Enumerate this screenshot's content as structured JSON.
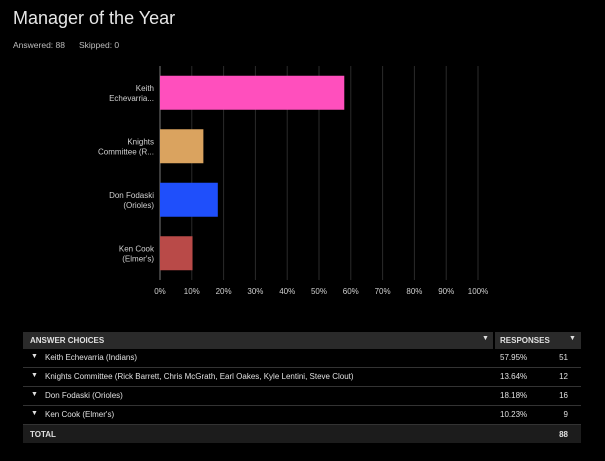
{
  "survey": {
    "title": "Manager of the Year",
    "answered_label": "Answered: 88",
    "skipped_label": "Skipped: 0"
  },
  "chart_data": {
    "type": "bar",
    "orientation": "horizontal",
    "categories": [
      [
        "Keith",
        "Echevarria..."
      ],
      [
        "Knights",
        "Committee (R..."
      ],
      [
        "Don Fodaski",
        "(Orioles)"
      ],
      [
        "Ken Cook",
        "(Elmer's)"
      ]
    ],
    "values": [
      57.95,
      13.64,
      18.18,
      10.23
    ],
    "colors": [
      "#ff4fbd",
      "#daa35f",
      "#1f4ffb",
      "#b94a48"
    ],
    "xlim": [
      0,
      100
    ],
    "ticks": [
      "0%",
      "10%",
      "20%",
      "30%",
      "40%",
      "50%",
      "60%",
      "70%",
      "80%",
      "90%",
      "100%"
    ],
    "grid": true
  },
  "table": {
    "header_choice": "ANSWER CHOICES",
    "header_responses": "RESPONSES",
    "rows": [
      {
        "choice": "Keith Echevarria (Indians)",
        "percent": "57.95%",
        "count": "51"
      },
      {
        "choice": "Knights Committee (Rick Barrett, Chris McGrath, Earl Oakes, Kyle Lentini, Steve Clout)",
        "percent": "13.64%",
        "count": "12"
      },
      {
        "choice": "Don Fodaski (Orioles)",
        "percent": "18.18%",
        "count": "16"
      },
      {
        "choice": "Ken Cook (Elmer's)",
        "percent": "10.23%",
        "count": "9"
      }
    ],
    "total_label": "TOTAL",
    "total_value": "88"
  }
}
